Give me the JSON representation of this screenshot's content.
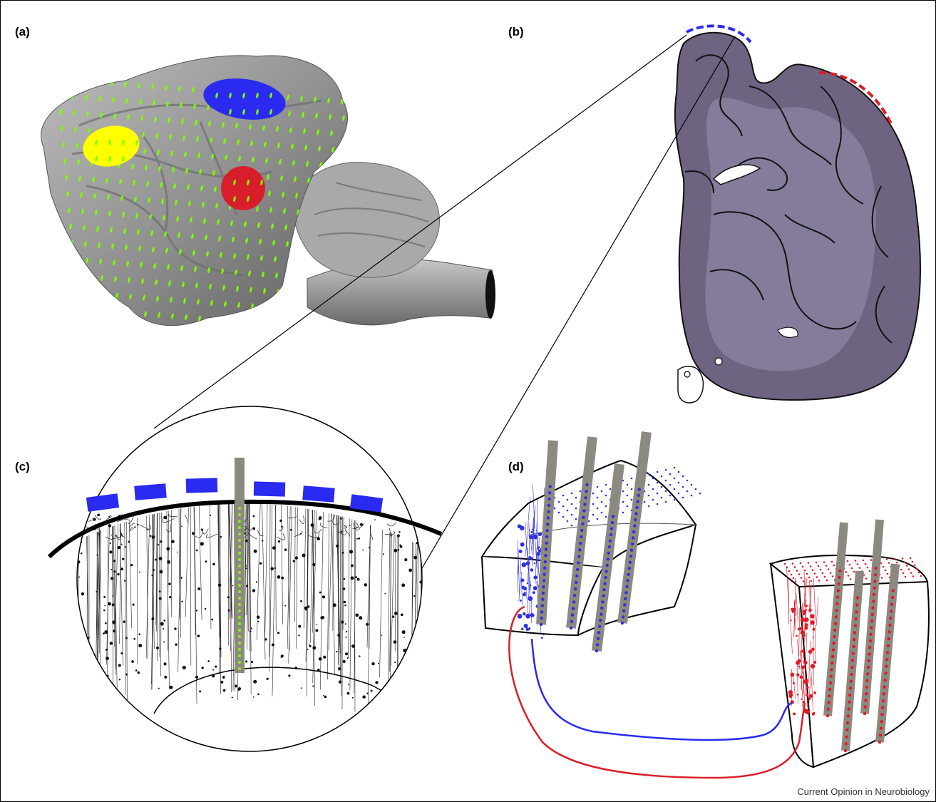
{
  "panels": {
    "a": {
      "label": "(a)"
    },
    "b": {
      "label": "(b)"
    },
    "c": {
      "label": "(c)"
    },
    "d": {
      "label": "(d)"
    }
  },
  "credit": "Current Opinion in Neurobiology",
  "colors": {
    "brain_surface": "#8f8f8f",
    "electrode_grid": "#7cfc00",
    "region_blue": "#2a2af0",
    "region_yellow": "#ffff00",
    "region_red": "#d81e2a",
    "section_stain": "#6e6482",
    "probe": "#8c8a80",
    "neuron_blue": "#3030e0",
    "neuron_red": "#e01a28"
  }
}
